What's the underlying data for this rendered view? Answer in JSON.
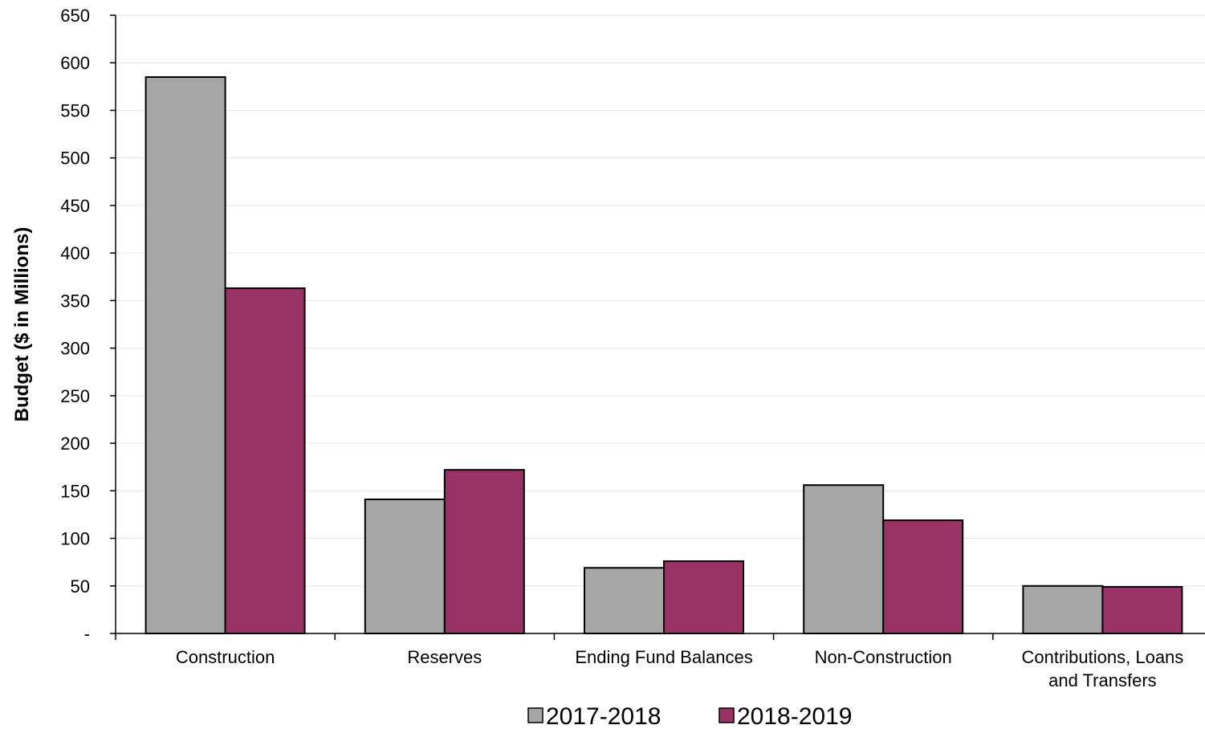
{
  "chart_data": {
    "type": "bar",
    "title": "",
    "xlabel": "",
    "ylabel": "Budget ($ in Millions)",
    "ylim": [
      0,
      650
    ],
    "yticks": [
      0,
      50,
      100,
      150,
      200,
      250,
      300,
      350,
      400,
      450,
      500,
      550,
      600,
      650
    ],
    "ytick_labels": [
      "-",
      "50",
      "100",
      "150",
      "200",
      "250",
      "300",
      "350",
      "400",
      "450",
      "500",
      "550",
      "600",
      "650"
    ],
    "grid": true,
    "legend_position": "bottom",
    "categories": [
      [
        "Construction"
      ],
      [
        "Reserves"
      ],
      [
        "Ending Fund Balances"
      ],
      [
        "Non-Construction"
      ],
      [
        "Contributions, Loans",
        "and Transfers"
      ]
    ],
    "series": [
      {
        "name": "2017-2018",
        "color": "#a6a6a6",
        "values": [
          585,
          141,
          69,
          156,
          50
        ]
      },
      {
        "name": "2018-2019",
        "color": "#993366",
        "values": [
          363,
          172,
          76,
          119,
          49
        ]
      }
    ]
  }
}
